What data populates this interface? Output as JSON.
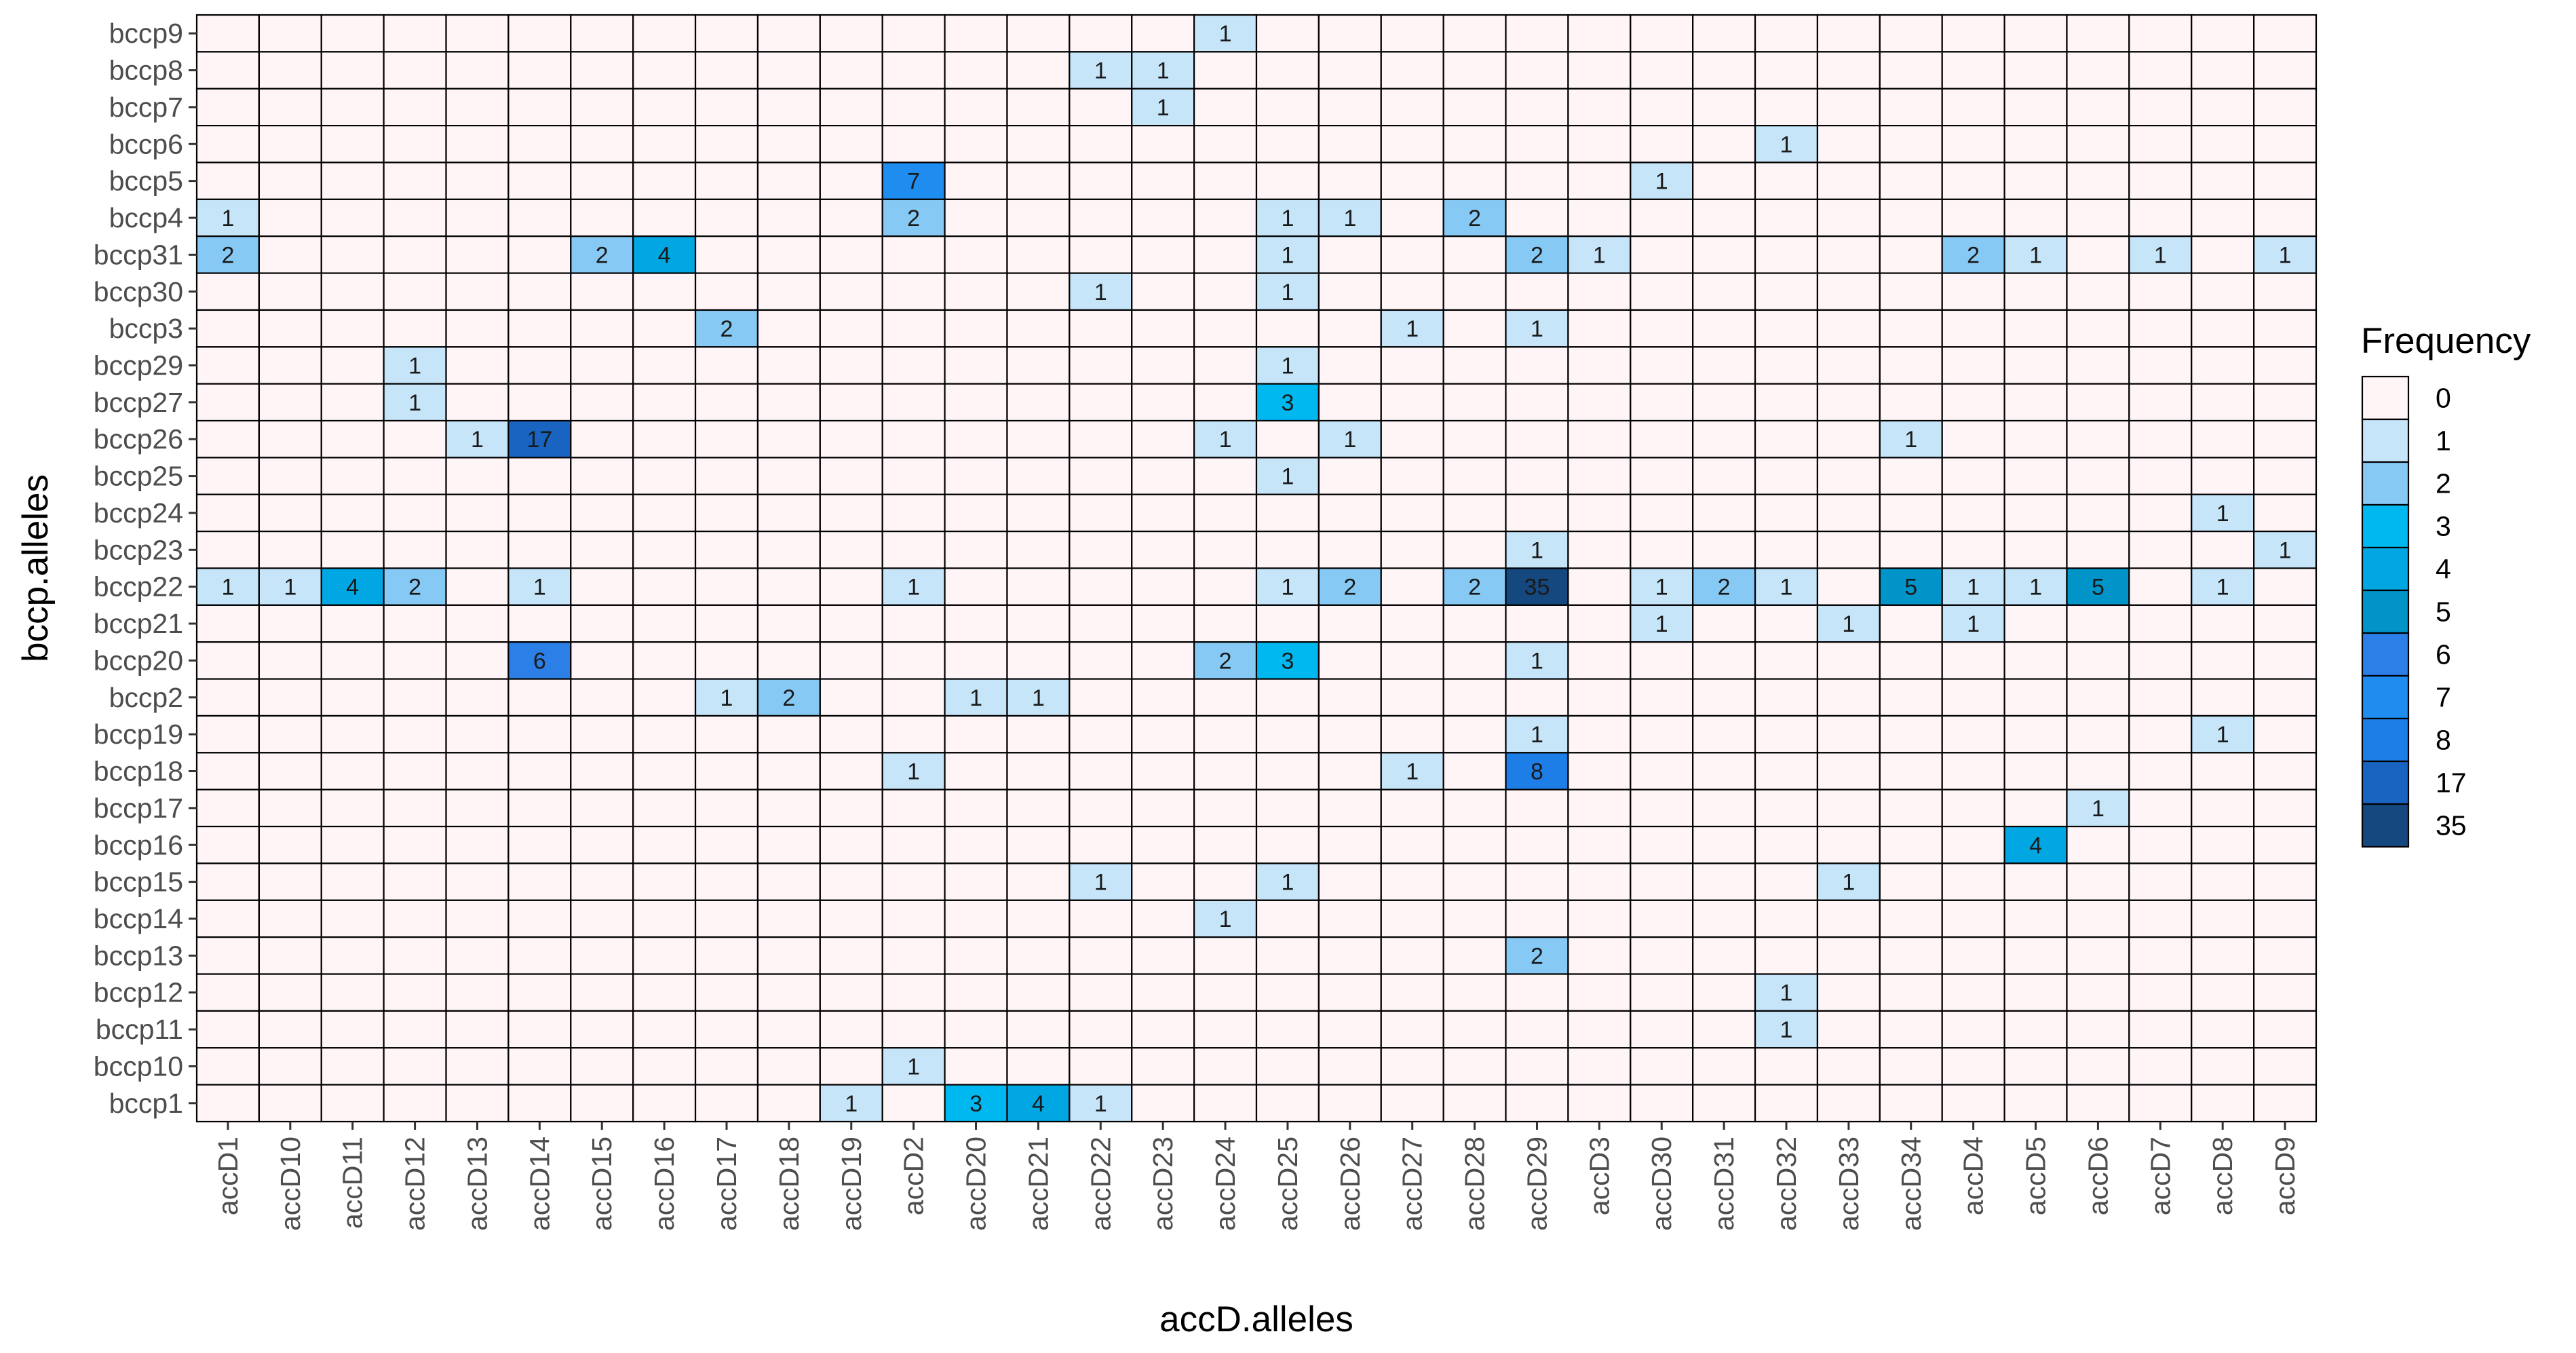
{
  "chart_data": {
    "type": "heatmap",
    "title": "",
    "xlabel": "accD.alleles",
    "ylabel": "bccp.alleles",
    "x_categories": [
      "accD1",
      "accD10",
      "accD11",
      "accD12",
      "accD13",
      "accD14",
      "accD15",
      "accD16",
      "accD17",
      "accD18",
      "accD19",
      "accD2",
      "accD20",
      "accD21",
      "accD22",
      "accD23",
      "accD24",
      "accD25",
      "accD26",
      "accD27",
      "accD28",
      "accD29",
      "accD3",
      "accD30",
      "accD31",
      "accD32",
      "accD33",
      "accD34",
      "accD4",
      "accD5",
      "accD6",
      "accD7",
      "accD8",
      "accD9"
    ],
    "y_categories": [
      "bccp9",
      "bccp8",
      "bccp7",
      "bccp6",
      "bccp5",
      "bccp4",
      "bccp31",
      "bccp30",
      "bccp3",
      "bccp29",
      "bccp27",
      "bccp26",
      "bccp25",
      "bccp24",
      "bccp23",
      "bccp22",
      "bccp21",
      "bccp20",
      "bccp2",
      "bccp19",
      "bccp18",
      "bccp17",
      "bccp16",
      "bccp15",
      "bccp14",
      "bccp13",
      "bccp12",
      "bccp11",
      "bccp10",
      "bccp1"
    ],
    "cells": [
      {
        "y": "bccp9",
        "x": "accD24",
        "value": 1
      },
      {
        "y": "bccp8",
        "x": "accD22",
        "value": 1
      },
      {
        "y": "bccp8",
        "x": "accD23",
        "value": 1
      },
      {
        "y": "bccp7",
        "x": "accD23",
        "value": 1
      },
      {
        "y": "bccp6",
        "x": "accD32",
        "value": 1
      },
      {
        "y": "bccp5",
        "x": "accD2",
        "value": 7
      },
      {
        "y": "bccp5",
        "x": "accD30",
        "value": 1
      },
      {
        "y": "bccp4",
        "x": "accD1",
        "value": 1
      },
      {
        "y": "bccp4",
        "x": "accD2",
        "value": 2
      },
      {
        "y": "bccp4",
        "x": "accD25",
        "value": 1
      },
      {
        "y": "bccp4",
        "x": "accD26",
        "value": 1
      },
      {
        "y": "bccp4",
        "x": "accD28",
        "value": 2
      },
      {
        "y": "bccp31",
        "x": "accD1",
        "value": 2
      },
      {
        "y": "bccp31",
        "x": "accD15",
        "value": 2
      },
      {
        "y": "bccp31",
        "x": "accD16",
        "value": 4
      },
      {
        "y": "bccp31",
        "x": "accD25",
        "value": 1
      },
      {
        "y": "bccp31",
        "x": "accD29",
        "value": 2
      },
      {
        "y": "bccp31",
        "x": "accD3",
        "value": 1
      },
      {
        "y": "bccp31",
        "x": "accD4",
        "value": 2
      },
      {
        "y": "bccp31",
        "x": "accD5",
        "value": 1
      },
      {
        "y": "bccp31",
        "x": "accD7",
        "value": 1
      },
      {
        "y": "bccp31",
        "x": "accD9",
        "value": 1
      },
      {
        "y": "bccp30",
        "x": "accD22",
        "value": 1
      },
      {
        "y": "bccp30",
        "x": "accD25",
        "value": 1
      },
      {
        "y": "bccp3",
        "x": "accD17",
        "value": 2
      },
      {
        "y": "bccp3",
        "x": "accD27",
        "value": 1
      },
      {
        "y": "bccp3",
        "x": "accD29",
        "value": 1
      },
      {
        "y": "bccp29",
        "x": "accD12",
        "value": 1
      },
      {
        "y": "bccp29",
        "x": "accD25",
        "value": 1
      },
      {
        "y": "bccp27",
        "x": "accD12",
        "value": 1
      },
      {
        "y": "bccp27",
        "x": "accD25",
        "value": 3
      },
      {
        "y": "bccp26",
        "x": "accD13",
        "value": 1
      },
      {
        "y": "bccp26",
        "x": "accD14",
        "value": 17
      },
      {
        "y": "bccp26",
        "x": "accD24",
        "value": 1
      },
      {
        "y": "bccp26",
        "x": "accD26",
        "value": 1
      },
      {
        "y": "bccp26",
        "x": "accD34",
        "value": 1
      },
      {
        "y": "bccp25",
        "x": "accD25",
        "value": 1
      },
      {
        "y": "bccp24",
        "x": "accD8",
        "value": 1
      },
      {
        "y": "bccp23",
        "x": "accD29",
        "value": 1
      },
      {
        "y": "bccp23",
        "x": "accD9",
        "value": 1
      },
      {
        "y": "bccp22",
        "x": "accD1",
        "value": 1
      },
      {
        "y": "bccp22",
        "x": "accD10",
        "value": 1
      },
      {
        "y": "bccp22",
        "x": "accD11",
        "value": 4
      },
      {
        "y": "bccp22",
        "x": "accD12",
        "value": 2
      },
      {
        "y": "bccp22",
        "x": "accD14",
        "value": 1
      },
      {
        "y": "bccp22",
        "x": "accD2",
        "value": 1
      },
      {
        "y": "bccp22",
        "x": "accD25",
        "value": 1
      },
      {
        "y": "bccp22",
        "x": "accD26",
        "value": 2
      },
      {
        "y": "bccp22",
        "x": "accD28",
        "value": 2
      },
      {
        "y": "bccp22",
        "x": "accD29",
        "value": 35
      },
      {
        "y": "bccp22",
        "x": "accD30",
        "value": 1
      },
      {
        "y": "bccp22",
        "x": "accD31",
        "value": 2
      },
      {
        "y": "bccp22",
        "x": "accD32",
        "value": 1
      },
      {
        "y": "bccp22",
        "x": "accD34",
        "value": 5
      },
      {
        "y": "bccp22",
        "x": "accD4",
        "value": 1
      },
      {
        "y": "bccp22",
        "x": "accD5",
        "value": 1
      },
      {
        "y": "bccp22",
        "x": "accD6",
        "value": 5
      },
      {
        "y": "bccp22",
        "x": "accD8",
        "value": 1
      },
      {
        "y": "bccp21",
        "x": "accD30",
        "value": 1
      },
      {
        "y": "bccp21",
        "x": "accD33",
        "value": 1
      },
      {
        "y": "bccp21",
        "x": "accD4",
        "value": 1
      },
      {
        "y": "bccp20",
        "x": "accD14",
        "value": 6
      },
      {
        "y": "bccp20",
        "x": "accD24",
        "value": 2
      },
      {
        "y": "bccp20",
        "x": "accD25",
        "value": 3
      },
      {
        "y": "bccp20",
        "x": "accD29",
        "value": 1
      },
      {
        "y": "bccp2",
        "x": "accD17",
        "value": 1
      },
      {
        "y": "bccp2",
        "x": "accD18",
        "value": 2
      },
      {
        "y": "bccp2",
        "x": "accD20",
        "value": 1
      },
      {
        "y": "bccp2",
        "x": "accD21",
        "value": 1
      },
      {
        "y": "bccp19",
        "x": "accD29",
        "value": 1
      },
      {
        "y": "bccp19",
        "x": "accD8",
        "value": 1
      },
      {
        "y": "bccp18",
        "x": "accD2",
        "value": 1
      },
      {
        "y": "bccp18",
        "x": "accD27",
        "value": 1
      },
      {
        "y": "bccp18",
        "x": "accD29",
        "value": 8
      },
      {
        "y": "bccp17",
        "x": "accD6",
        "value": 1
      },
      {
        "y": "bccp16",
        "x": "accD5",
        "value": 4
      },
      {
        "y": "bccp15",
        "x": "accD22",
        "value": 1
      },
      {
        "y": "bccp15",
        "x": "accD25",
        "value": 1
      },
      {
        "y": "bccp15",
        "x": "accD33",
        "value": 1
      },
      {
        "y": "bccp14",
        "x": "accD24",
        "value": 1
      },
      {
        "y": "bccp13",
        "x": "accD29",
        "value": 2
      },
      {
        "y": "bccp12",
        "x": "accD32",
        "value": 1
      },
      {
        "y": "bccp11",
        "x": "accD32",
        "value": 1
      },
      {
        "y": "bccp10",
        "x": "accD2",
        "value": 1
      },
      {
        "y": "bccp1",
        "x": "accD19",
        "value": 1
      },
      {
        "y": "bccp1",
        "x": "accD20",
        "value": 3
      },
      {
        "y": "bccp1",
        "x": "accD21",
        "value": 4
      },
      {
        "y": "bccp1",
        "x": "accD22",
        "value": 1
      }
    ],
    "legend": {
      "title": "Frequency",
      "position": "right",
      "levels": [
        {
          "label": "0",
          "color": "#fff5f7"
        },
        {
          "label": "1",
          "color": "#c6e5f9"
        },
        {
          "label": "2",
          "color": "#86c9f4"
        },
        {
          "label": "3",
          "color": "#00b8f0"
        },
        {
          "label": "4",
          "color": "#00a7e3"
        },
        {
          "label": "5",
          "color": "#0094c8"
        },
        {
          "label": "6",
          "color": "#2b7fe6"
        },
        {
          "label": "7",
          "color": "#1f8df0"
        },
        {
          "label": "8",
          "color": "#1e7ee8"
        },
        {
          "label": "17",
          "color": "#1a64c1"
        },
        {
          "label": "35",
          "color": "#14487f"
        }
      ]
    },
    "grid": true
  }
}
